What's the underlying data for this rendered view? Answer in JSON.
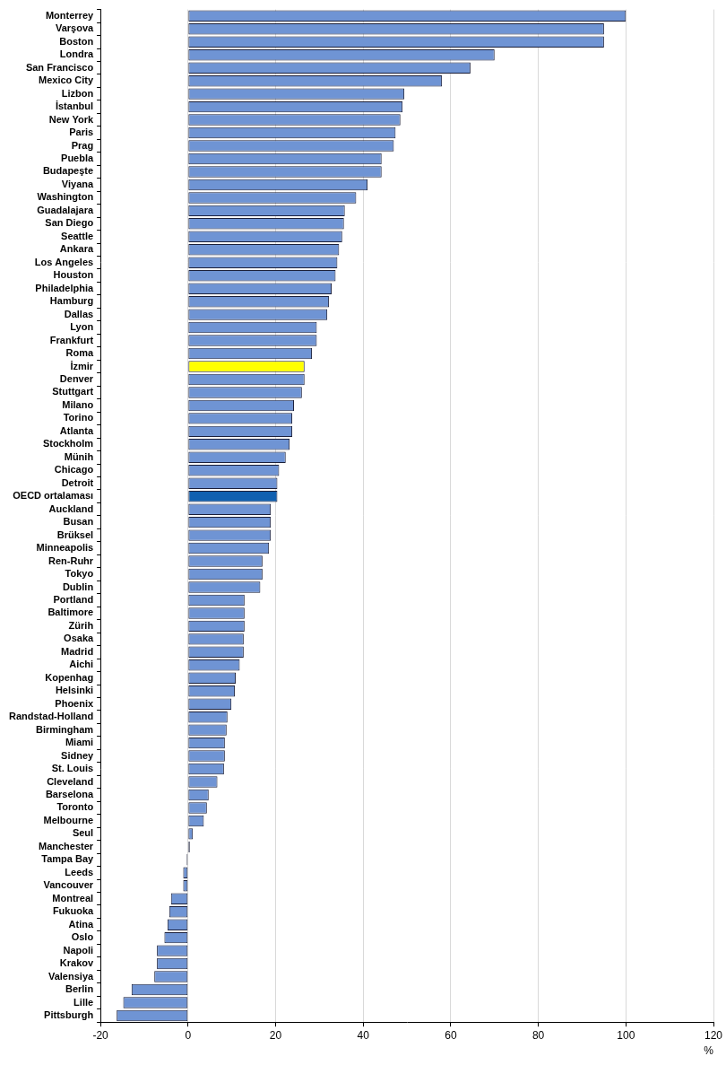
{
  "chart_data": {
    "type": "bar",
    "orientation": "horizontal",
    "xlabel": "%",
    "categories": [
      "Monterrey",
      "Varşova",
      "Boston",
      "Londra",
      "San Francisco",
      "Mexico City",
      "Lizbon",
      "İstanbul",
      "New York",
      "Paris",
      "Prag",
      "Puebla",
      "Budapeşte",
      "Viyana",
      "Washington",
      "Guadalajara",
      "San Diego",
      "Seattle",
      "Ankara",
      "Los Angeles",
      "Houston",
      "Philadelphia",
      "Hamburg",
      "Dallas",
      "Lyon",
      "Frankfurt",
      "Roma",
      "İzmir",
      "Denver",
      "Stuttgart",
      "Milano",
      "Torino",
      "Atlanta",
      "Stockholm",
      "Münih",
      "Chicago",
      "Detroit",
      "OECD ortalaması",
      "Auckland",
      "Busan",
      "Brüksel",
      "Minneapolis",
      "Ren-Ruhr",
      "Tokyo",
      "Dublin",
      "Portland",
      "Baltimore",
      "Zürih",
      "Osaka",
      "Madrid",
      "Aichi",
      "Kopenhag",
      "Helsinki",
      "Phoenix",
      "Randstad-Holland",
      "Birmingham",
      "Miami",
      "Sidney",
      "St. Louis",
      "Cleveland",
      "Barselona",
      "Toronto",
      "Melbourne",
      "Seul",
      "Manchester",
      "Tampa Bay",
      "Leeds",
      "Vancouver",
      "Montreal",
      "Fukuoka",
      "Atina",
      "Oslo",
      "Napoli",
      "Krakov",
      "Valensiya",
      "Berlin",
      "Lille",
      "Pittsburgh"
    ],
    "values": [
      100,
      95,
      95,
      70,
      64.5,
      58,
      49.4,
      49,
      48.5,
      47.4,
      47,
      44.2,
      44.2,
      41,
      38.4,
      35.8,
      35.6,
      35.2,
      34.5,
      34.1,
      33.7,
      32.8,
      32.2,
      31.8,
      29.4,
      29.4,
      28.3,
      26.6,
      26.6,
      26,
      24.2,
      23.8,
      23.8,
      23.2,
      22.3,
      20.8,
      20.4,
      20.4,
      18.9,
      18.9,
      18.9,
      18.5,
      17,
      17,
      16.5,
      12.9,
      12.9,
      12.9,
      12.7,
      12.7,
      11.8,
      10.9,
      10.7,
      9.9,
      9,
      8.8,
      8.4,
      8.4,
      8.2,
      6.7,
      4.7,
      4.3,
      3.6,
      1.1,
      0.4,
      -0.3,
      -1.1,
      -1.1,
      -3.9,
      -4.3,
      -4.7,
      -5.4,
      -7.1,
      -7.1,
      -7.7,
      -12.9,
      -14.8,
      -16.3
    ],
    "colors": [
      "#6f94d4",
      "#6f94d4",
      "#6f94d4",
      "#6f94d4",
      "#6f94d4",
      "#6f94d4",
      "#6f94d4",
      "#6f94d4",
      "#6f94d4",
      "#6f94d4",
      "#6f94d4",
      "#6f94d4",
      "#6f94d4",
      "#6f94d4",
      "#6f94d4",
      "#6f94d4",
      "#6f94d4",
      "#6f94d4",
      "#6f94d4",
      "#6f94d4",
      "#6f94d4",
      "#6f94d4",
      "#6f94d4",
      "#6f94d4",
      "#6f94d4",
      "#6f94d4",
      "#6f94d4",
      "#ffff00",
      "#6f94d4",
      "#6f94d4",
      "#6f94d4",
      "#6f94d4",
      "#6f94d4",
      "#6f94d4",
      "#6f94d4",
      "#6f94d4",
      "#6f94d4",
      "#1060b0",
      "#6f94d4",
      "#6f94d4",
      "#6f94d4",
      "#6f94d4",
      "#6f94d4",
      "#6f94d4",
      "#6f94d4",
      "#6f94d4",
      "#6f94d4",
      "#6f94d4",
      "#6f94d4",
      "#6f94d4",
      "#6f94d4",
      "#6f94d4",
      "#6f94d4",
      "#6f94d4",
      "#6f94d4",
      "#6f94d4",
      "#6f94d4",
      "#6f94d4",
      "#6f94d4",
      "#6f94d4",
      "#6f94d4",
      "#6f94d4",
      "#6f94d4",
      "#6f94d4",
      "#6f94d4",
      "#6f94d4",
      "#6f94d4",
      "#6f94d4",
      "#6f94d4",
      "#6f94d4",
      "#6f94d4",
      "#6f94d4",
      "#6f94d4",
      "#6f94d4",
      "#6f94d4",
      "#6f94d4",
      "#6f94d4",
      "#6f94d4"
    ],
    "xlim": [
      -20,
      120
    ],
    "xticks": [
      -20,
      0,
      20,
      40,
      60,
      80,
      100,
      120
    ],
    "grid": true
  }
}
